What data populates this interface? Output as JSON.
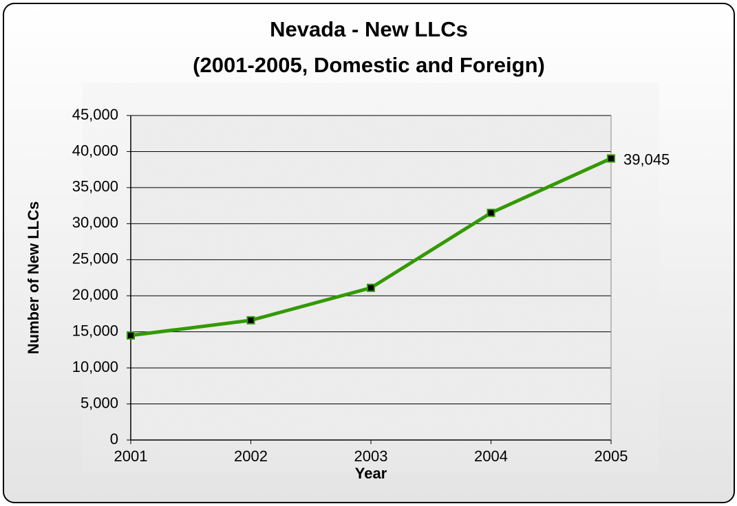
{
  "chart_data": {
    "type": "line",
    "title": [
      "Nevada - New LLCs",
      "(2001-2005, Domestic and Foreign)"
    ],
    "xlabel": "Year",
    "ylabel": "Number of New LLCs",
    "categories": [
      "2001",
      "2002",
      "2003",
      "2004",
      "2005"
    ],
    "series": [
      {
        "name": "New LLCs",
        "color": "#339900",
        "values": [
          14500,
          16600,
          21100,
          31500,
          39045
        ],
        "value_labels": [
          null,
          null,
          null,
          null,
          "39,045"
        ]
      }
    ],
    "ylim": [
      0,
      45000
    ],
    "yticks": [
      0,
      {
        "value": 5000,
        "label": "5,000"
      },
      {
        "value": 10000,
        "label": "10,000"
      },
      {
        "value": 15000,
        "label": "15,000"
      },
      {
        "value": 20000,
        "label": "20,000"
      },
      {
        "value": 25000,
        "label": "25,000"
      },
      {
        "value": 30000,
        "label": "30,000"
      },
      {
        "value": 35000,
        "label": "35,000"
      },
      {
        "value": 40000,
        "label": "40,000"
      },
      {
        "value": 45000,
        "label": "45,000"
      }
    ],
    "grid": true
  }
}
